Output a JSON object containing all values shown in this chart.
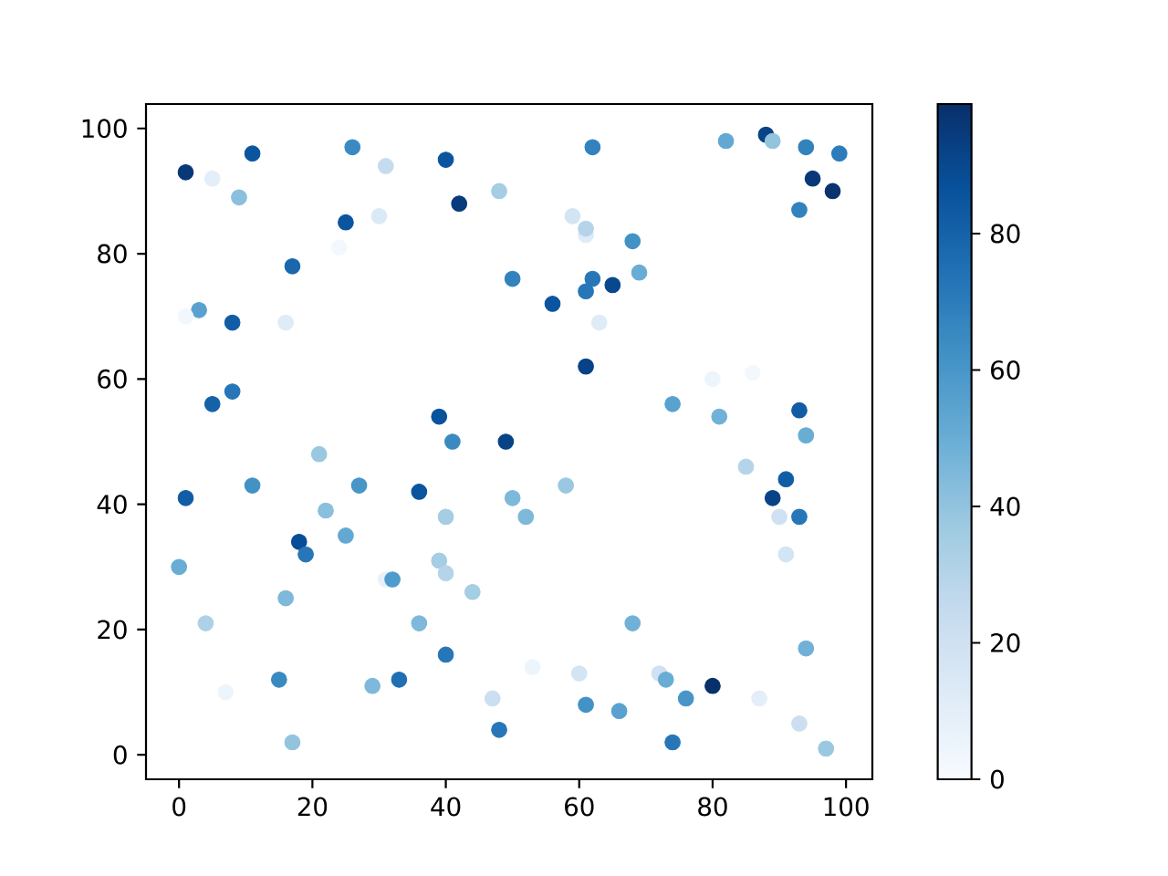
{
  "chart_data": {
    "type": "scatter",
    "marker": "circle",
    "x": [
      1,
      5,
      11,
      9,
      26,
      31,
      40,
      42,
      48,
      25,
      30,
      24,
      17,
      3,
      1,
      8,
      16,
      5,
      8,
      39,
      41,
      49,
      50,
      62,
      82,
      88,
      89,
      94,
      99,
      95,
      98,
      93,
      59,
      61,
      61,
      68,
      69,
      62,
      61,
      65,
      56,
      63,
      61,
      80,
      86,
      74,
      81,
      93,
      94,
      21,
      11,
      1,
      27,
      36,
      50,
      22,
      40,
      25,
      18,
      19,
      0,
      39,
      40,
      31,
      32,
      44,
      16,
      4,
      36,
      40,
      15,
      29,
      33,
      7,
      47,
      48,
      17,
      85,
      91,
      89,
      90,
      93,
      91,
      58,
      52,
      68,
      94,
      53,
      60,
      72,
      73,
      80,
      87,
      76,
      61,
      66,
      93,
      74,
      97
    ],
    "values": [
      93,
      92,
      96,
      89,
      97,
      94,
      95,
      88,
      90,
      85,
      86,
      81,
      78,
      71,
      70,
      69,
      69,
      56,
      58,
      54,
      50,
      50,
      76,
      97,
      98,
      99,
      98,
      97,
      96,
      92,
      90,
      87,
      86,
      83,
      84,
      82,
      77,
      76,
      74,
      75,
      72,
      69,
      62,
      60,
      61,
      56,
      54,
      55,
      51,
      48,
      43,
      41,
      43,
      42,
      41,
      39,
      38,
      35,
      34,
      32,
      30,
      31,
      29,
      28,
      28,
      26,
      25,
      21,
      21,
      16,
      12,
      11,
      12,
      10,
      9,
      4,
      2,
      46,
      44,
      41,
      38,
      38,
      32,
      43,
      38,
      21,
      17,
      14,
      13,
      13,
      12,
      11,
      9,
      9,
      8,
      7,
      5,
      2,
      1
    ],
    "cvalues": [
      96,
      10,
      85,
      42,
      65,
      25,
      85,
      95,
      35,
      85,
      14,
      2,
      78,
      55,
      3,
      82,
      12,
      80,
      72,
      86,
      65,
      92,
      68,
      68,
      52,
      92,
      40,
      68,
      70,
      96,
      98,
      68,
      18,
      12,
      30,
      62,
      50,
      72,
      72,
      90,
      85,
      12,
      92,
      5,
      2,
      55,
      48,
      82,
      50,
      38,
      62,
      82,
      60,
      85,
      45,
      42,
      35,
      52,
      88,
      72,
      50,
      35,
      30,
      8,
      58,
      35,
      45,
      32,
      45,
      72,
      65,
      45,
      75,
      5,
      22,
      72,
      40,
      30,
      82,
      92,
      20,
      72,
      18,
      38,
      45,
      48,
      48,
      5,
      18,
      20,
      50,
      99,
      10,
      60,
      62,
      55,
      22,
      72,
      38
    ],
    "clim": [
      0,
      99
    ],
    "cticks": [
      0,
      20,
      40,
      60,
      80
    ],
    "xlim": [
      -4.95,
      103.95
    ],
    "ylim": [
      -3.9,
      103.9
    ],
    "xticks": [
      0,
      20,
      40,
      60,
      80,
      100
    ],
    "yticks": [
      0,
      20,
      40,
      60,
      80,
      100
    ]
  }
}
